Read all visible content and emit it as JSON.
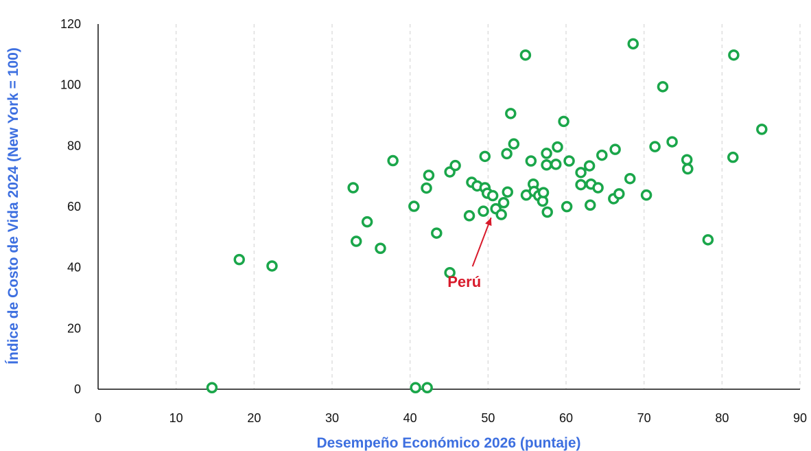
{
  "chart_data": {
    "type": "scatter",
    "xlabel": "Desempeño Económico 2026 (puntaje)",
    "ylabel": "Índice de Costo de Vida 2024 (New York = 100)",
    "xlim": [
      0,
      90
    ],
    "ylim": [
      0,
      120
    ],
    "xticks": [
      "0",
      "10",
      "20",
      "30",
      "40",
      "50",
      "60",
      "70",
      "80",
      "90"
    ],
    "yticks": [
      "0",
      "20",
      "40",
      "60",
      "80",
      "100",
      "120"
    ],
    "grid": "vertical-dashed",
    "annotation": {
      "text": "Perú",
      "x": 51.0,
      "y": 59.3
    },
    "points": [
      {
        "x": 14.6,
        "y": 0.5
      },
      {
        "x": 40.7,
        "y": 0.5
      },
      {
        "x": 42.2,
        "y": 0.5
      },
      {
        "x": 18.1,
        "y": 42.6
      },
      {
        "x": 22.3,
        "y": 40.5
      },
      {
        "x": 32.7,
        "y": 66.2
      },
      {
        "x": 33.1,
        "y": 48.6
      },
      {
        "x": 34.5,
        "y": 55.0
      },
      {
        "x": 36.2,
        "y": 46.3
      },
      {
        "x": 37.8,
        "y": 75.1
      },
      {
        "x": 40.5,
        "y": 60.1
      },
      {
        "x": 42.1,
        "y": 66.1
      },
      {
        "x": 42.4,
        "y": 70.3
      },
      {
        "x": 43.4,
        "y": 51.3
      },
      {
        "x": 45.1,
        "y": 71.4
      },
      {
        "x": 45.1,
        "y": 38.3
      },
      {
        "x": 45.8,
        "y": 73.5
      },
      {
        "x": 47.6,
        "y": 57.0
      },
      {
        "x": 47.9,
        "y": 68.0
      },
      {
        "x": 48.6,
        "y": 66.8
      },
      {
        "x": 49.4,
        "y": 58.5
      },
      {
        "x": 49.6,
        "y": 76.5
      },
      {
        "x": 49.6,
        "y": 66.2
      },
      {
        "x": 49.9,
        "y": 64.4
      },
      {
        "x": 50.6,
        "y": 63.6
      },
      {
        "x": 51.0,
        "y": 59.3
      },
      {
        "x": 51.7,
        "y": 57.4
      },
      {
        "x": 52.0,
        "y": 61.3
      },
      {
        "x": 52.4,
        "y": 77.4
      },
      {
        "x": 52.5,
        "y": 64.8
      },
      {
        "x": 52.9,
        "y": 90.6
      },
      {
        "x": 53.3,
        "y": 80.6
      },
      {
        "x": 54.8,
        "y": 109.8
      },
      {
        "x": 54.9,
        "y": 63.8
      },
      {
        "x": 55.5,
        "y": 75.0
      },
      {
        "x": 55.8,
        "y": 67.4
      },
      {
        "x": 55.9,
        "y": 65.0
      },
      {
        "x": 56.5,
        "y": 63.6
      },
      {
        "x": 57.0,
        "y": 61.8
      },
      {
        "x": 57.1,
        "y": 64.6
      },
      {
        "x": 57.5,
        "y": 77.5
      },
      {
        "x": 57.5,
        "y": 73.7
      },
      {
        "x": 57.6,
        "y": 58.2
      },
      {
        "x": 58.7,
        "y": 73.9
      },
      {
        "x": 58.9,
        "y": 79.6
      },
      {
        "x": 59.7,
        "y": 88.0
      },
      {
        "x": 60.1,
        "y": 60.0
      },
      {
        "x": 60.4,
        "y": 75.0
      },
      {
        "x": 61.9,
        "y": 71.2
      },
      {
        "x": 61.9,
        "y": 67.2
      },
      {
        "x": 63.0,
        "y": 73.4
      },
      {
        "x": 63.1,
        "y": 60.5
      },
      {
        "x": 63.2,
        "y": 67.4
      },
      {
        "x": 64.1,
        "y": 66.2
      },
      {
        "x": 64.6,
        "y": 76.9
      },
      {
        "x": 66.1,
        "y": 62.6
      },
      {
        "x": 66.3,
        "y": 78.8
      },
      {
        "x": 66.8,
        "y": 64.2
      },
      {
        "x": 68.2,
        "y": 69.2
      },
      {
        "x": 68.6,
        "y": 113.5
      },
      {
        "x": 70.3,
        "y": 63.8
      },
      {
        "x": 71.4,
        "y": 79.7
      },
      {
        "x": 72.4,
        "y": 99.4
      },
      {
        "x": 73.6,
        "y": 81.3
      },
      {
        "x": 75.5,
        "y": 75.4
      },
      {
        "x": 75.6,
        "y": 72.4
      },
      {
        "x": 78.2,
        "y": 49.1
      },
      {
        "x": 81.4,
        "y": 76.2
      },
      {
        "x": 81.5,
        "y": 109.8
      },
      {
        "x": 85.1,
        "y": 85.4
      }
    ]
  },
  "colors": {
    "points": "#1aa64a",
    "axis_titles": "#3d6fe0",
    "annotation": "#d81a2b",
    "grid": "#d7d7d7",
    "axis": "#111111"
  }
}
